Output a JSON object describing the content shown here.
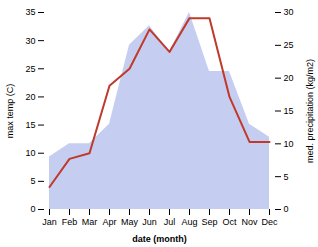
{
  "chart_data": {
    "type": "line",
    "categories": [
      "Jan",
      "Feb",
      "Mar",
      "Apr",
      "May",
      "Jun",
      "Jul",
      "Aug",
      "Sep",
      "Oct",
      "Nov",
      "Dec"
    ],
    "series": [
      {
        "type": "area",
        "axis": "y2",
        "color": "#c5cef0",
        "values": [
          8,
          10,
          10,
          13,
          25,
          28,
          24,
          30,
          21,
          21,
          13,
          11
        ]
      },
      {
        "type": "line",
        "color": "#c0392b",
        "values": [
          4,
          9,
          10,
          22,
          25,
          32,
          28,
          34,
          34,
          20,
          12,
          12
        ]
      }
    ],
    "xlabel": "date (month)",
    "ylabel": "max temp (C)",
    "y2label": "med. precipitation (kg/m2)",
    "ylim": [
      0,
      35
    ],
    "yticks": [
      0,
      5,
      10,
      15,
      20,
      25,
      30,
      35
    ],
    "y2lim": [
      0,
      30
    ],
    "y2ticks": [
      0,
      5,
      10,
      15,
      20,
      25,
      30
    ],
    "grid": false
  }
}
